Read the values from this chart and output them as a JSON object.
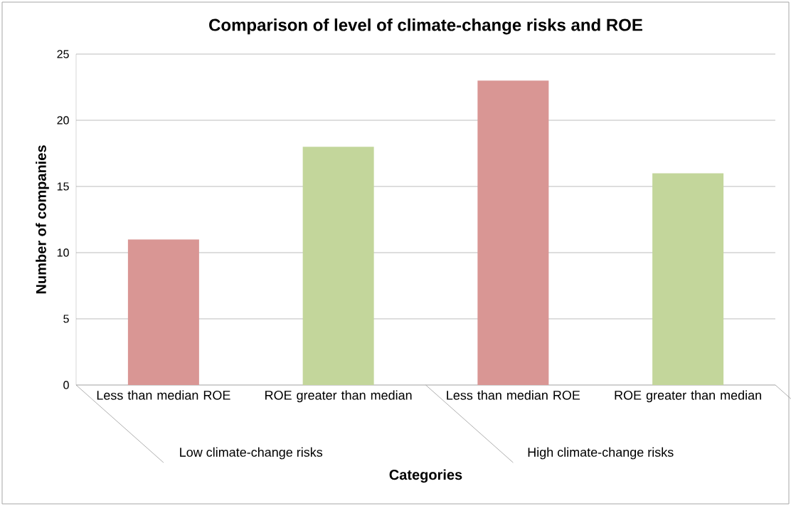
{
  "chart_data": {
    "type": "bar",
    "title": "Comparison of level of climate-change risks and ROE",
    "xlabel": "Categories",
    "ylabel": "Number of companies",
    "categories": [
      "Less than median ROE",
      "ROE greater than median",
      "Less than median ROE",
      "ROE greater than median"
    ],
    "values": [
      11,
      18,
      23,
      16
    ],
    "colors": [
      "#d99694",
      "#c3d69b",
      "#d99694",
      "#c3d69b"
    ],
    "ylim": [
      0,
      25
    ],
    "yticks": [
      0,
      5,
      10,
      15,
      20,
      25
    ],
    "grid": "y",
    "annotations": [
      "Low climate-change risks",
      "High climate-change risks"
    ]
  }
}
